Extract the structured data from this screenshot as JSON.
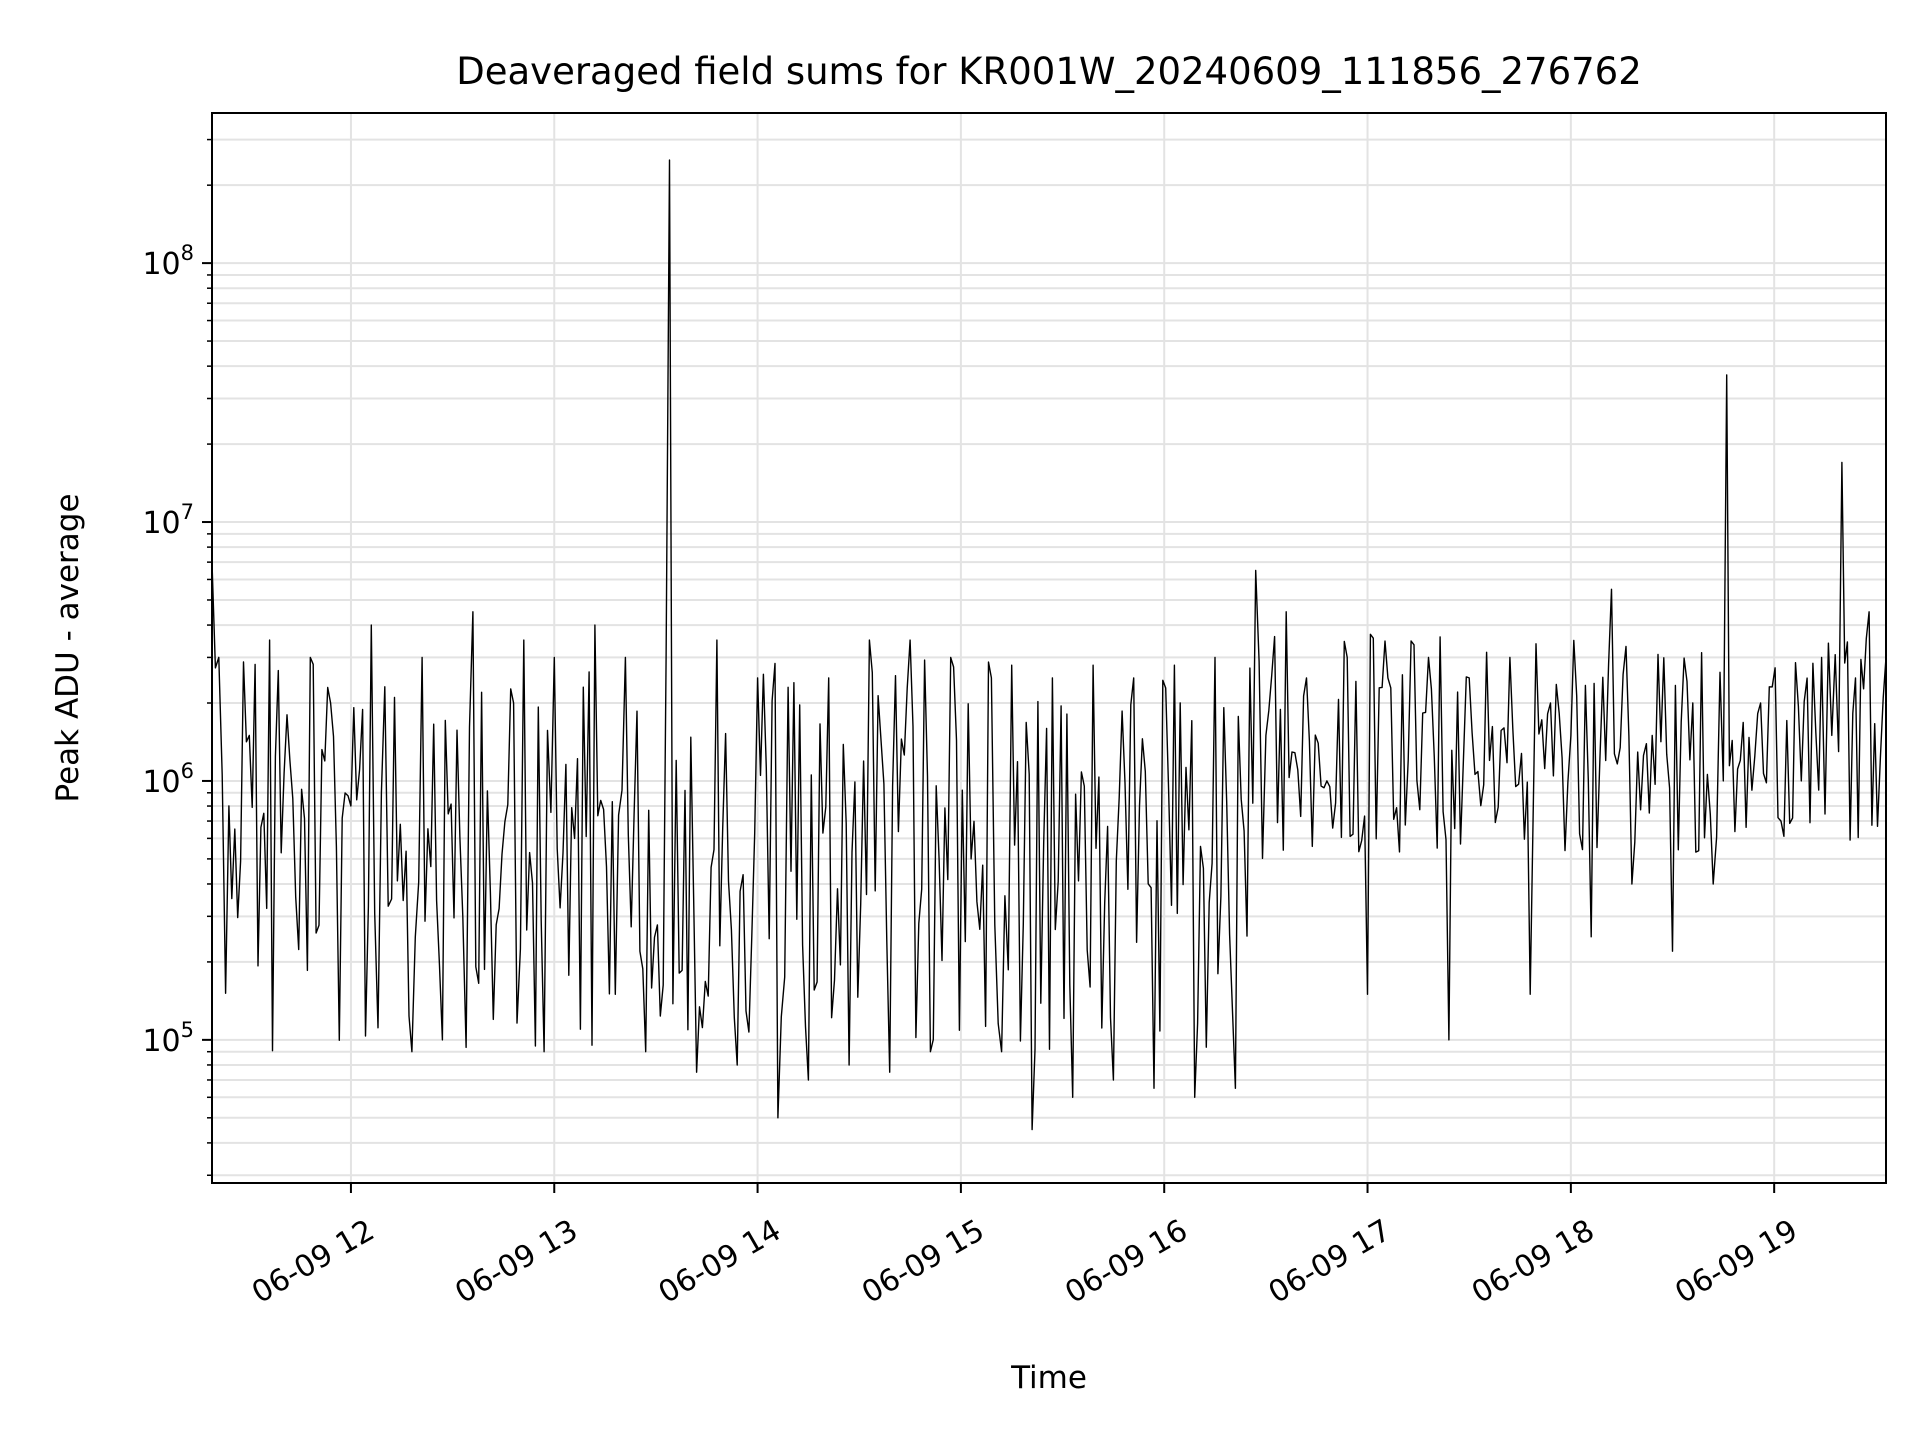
{
  "chart_data": {
    "type": "line",
    "title": "Deaveraged field sums for KR001W_20240609_111856_276762",
    "xlabel": "Time",
    "ylabel": "Peak ADU - average",
    "yscale": "log",
    "xlim": [
      "06-09 11:19",
      "06-09 19:33"
    ],
    "ylim": [
      28000,
      380000000
    ],
    "grid": true,
    "x_ticks": [
      "06-09 12",
      "06-09 13",
      "06-09 14",
      "06-09 15",
      "06-09 16",
      "06-09 17",
      "06-09 18",
      "06-09 19"
    ],
    "y_ticks": [
      {
        "base": "10",
        "exp": "5"
      },
      {
        "base": "10",
        "exp": "6"
      },
      {
        "base": "10",
        "exp": "7"
      },
      {
        "base": "10",
        "exp": "8"
      }
    ],
    "series": [
      {
        "x": [
          "06-09 11:19",
          "06-09 11:21",
          "06-09 11:24",
          "06-09 11:30",
          "06-09 11:36",
          "06-09 11:42",
          "06-09 11:48",
          "06-09 11:54",
          "06-09 12:00",
          "06-09 12:06",
          "06-09 12:09",
          "06-09 12:12",
          "06-09 12:18",
          "06-09 12:21",
          "06-09 12:27",
          "06-09 12:33",
          "06-09 12:36",
          "06-09 12:42",
          "06-09 12:48",
          "06-09 12:51",
          "06-09 12:57",
          "06-09 13:00",
          "06-09 13:06",
          "06-09 13:12",
          "06-09 13:18",
          "06-09 13:21",
          "06-09 13:27",
          "06-09 13:33",
          "06-09 13:34",
          "06-09 13:36",
          "06-09 13:42",
          "06-09 13:48",
          "06-09 13:54",
          "06-09 14:00",
          "06-09 14:06",
          "06-09 14:09",
          "06-09 14:15",
          "06-09 14:21",
          "06-09 14:27",
          "06-09 14:33",
          "06-09 14:39",
          "06-09 14:45",
          "06-09 14:51",
          "06-09 14:57",
          "06-09 15:03",
          "06-09 15:09",
          "06-09 15:12",
          "06-09 15:15",
          "06-09 15:21",
          "06-09 15:27",
          "06-09 15:33",
          "06-09 15:39",
          "06-09 15:45",
          "06-09 15:51",
          "06-09 15:57",
          "06-09 16:03",
          "06-09 16:09",
          "06-09 16:15",
          "06-09 16:21",
          "06-09 16:27",
          "06-09 16:30",
          "06-09 16:36",
          "06-09 16:42",
          "06-09 16:48",
          "06-09 16:54",
          "06-09 17:00",
          "06-09 17:06",
          "06-09 17:12",
          "06-09 17:18",
          "06-09 17:24",
          "06-09 17:30",
          "06-09 17:36",
          "06-09 17:42",
          "06-09 17:48",
          "06-09 17:54",
          "06-09 18:00",
          "06-09 18:06",
          "06-09 18:12",
          "06-09 18:18",
          "06-09 18:24",
          "06-09 18:30",
          "06-09 18:36",
          "06-09 18:42",
          "06-09 18:45",
          "06-09 18:46",
          "06-09 18:50",
          "06-09 18:56",
          "06-09 19:02",
          "06-09 19:08",
          "06-09 19:14",
          "06-09 19:17",
          "06-09 19:20",
          "06-09 19:24",
          "06-09 19:28",
          "06-09 19:33"
        ],
        "y": [
          7000000,
          3000000,
          800000,
          1500000,
          3500000,
          1200000,
          3000000,
          2000000,
          800000,
          4000000,
          900000,
          350000,
          90000,
          3000000,
          100000,
          300000,
          4500000,
          120000,
          2000000,
          3500000,
          90000,
          3000000,
          600000,
          4000000,
          150000,
          3000000,
          90000,
          3000000,
          250000000,
          1200000,
          75000,
          3500000,
          80000,
          2500000,
          50000,
          2300000,
          70000,
          2500000,
          80000,
          3500000,
          75000,
          3500000,
          90000,
          3000000,
          500000,
          2500000,
          90000,
          2800000,
          45000,
          2500000,
          60000,
          2800000,
          70000,
          2500000,
          65000,
          2800000,
          60000,
          3000000,
          65000,
          6500000,
          1500000,
          4500000,
          2500000,
          1000000,
          3000000,
          150000,
          2500000,
          1200000,
          3000000,
          100000,
          2500000,
          1200000,
          3000000,
          150000,
          2000000,
          1500000,
          250000,
          5500000,
          400000,
          1500000,
          220000,
          2000000,
          400000,
          1000000,
          37000000,
          1200000,
          2000000,
          700000,
          1000000,
          3000000,
          1500000,
          17000000,
          2500000,
          4500000,
          3000000
        ]
      }
    ]
  }
}
